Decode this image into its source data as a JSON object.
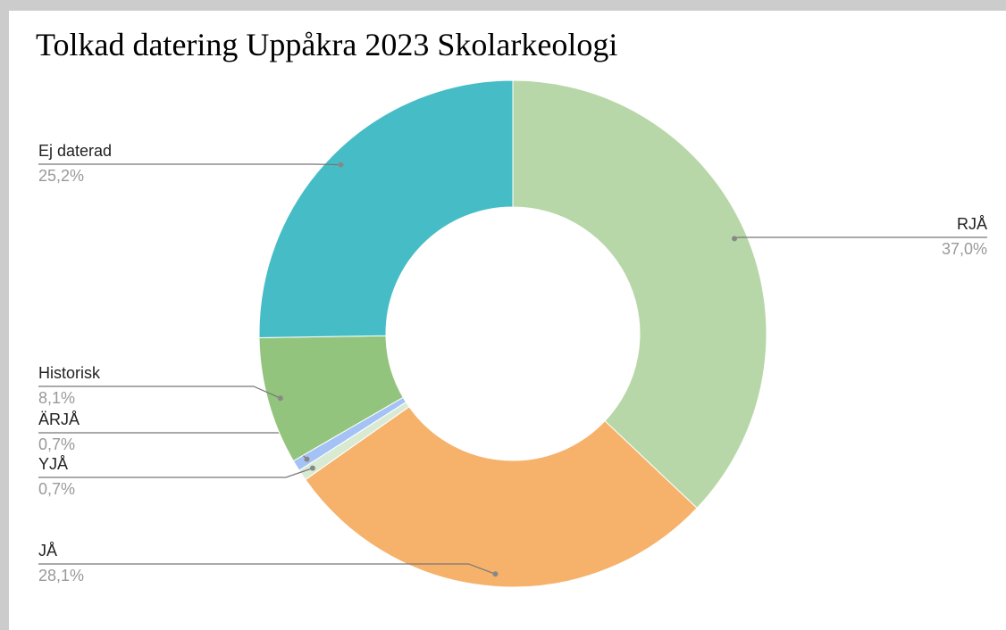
{
  "chart_data": {
    "type": "donut",
    "title": "Tolkad datering Uppåkra 2023 Skolarkeologi",
    "categories": [
      "RJÅ",
      "JÅ",
      "YJÅ",
      "ÄRJÅ",
      "Historisk",
      "Ej daterad"
    ],
    "values": [
      37.0,
      28.1,
      0.7,
      0.7,
      8.1,
      25.2
    ],
    "value_labels": [
      "37,0%",
      "28,1%",
      "0,7%",
      "0,7%",
      "8,1%",
      "25,2%"
    ],
    "colors": [
      "#b7d7a8",
      "#f6b26b",
      "#d9ead3",
      "#a4c2f4",
      "#93c47d",
      "#46bdc6"
    ]
  }
}
